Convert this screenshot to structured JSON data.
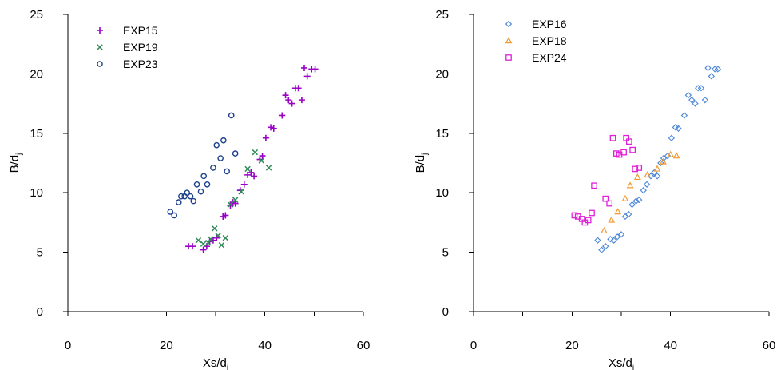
{
  "chart_data": [
    {
      "type": "scatter",
      "xlabel": "Xs/d",
      "xlabel_sub": "i",
      "ylabel": "B/d",
      "ylabel_sub": "j",
      "xlim": [
        0,
        60
      ],
      "ylim": [
        0,
        25
      ],
      "xticks": [
        0,
        20,
        40,
        60
      ],
      "yticks": [
        0,
        5,
        10,
        15,
        20,
        25
      ],
      "grid": false,
      "legend_position": "top-left",
      "series": [
        {
          "name": "EXP15",
          "marker": "plus",
          "color": "#9a00c8",
          "points": [
            [
              24.5,
              5.5
            ],
            [
              25.3,
              5.5
            ],
            [
              27.5,
              5.2
            ],
            [
              28.2,
              5.5
            ],
            [
              28.8,
              5.9
            ],
            [
              29.5,
              6.0
            ],
            [
              30.2,
              6.2
            ],
            [
              31.5,
              8.0
            ],
            [
              32.0,
              8.1
            ],
            [
              33.0,
              8.9
            ],
            [
              33.5,
              9.2
            ],
            [
              34.0,
              9.1
            ],
            [
              35.0,
              10.2
            ],
            [
              35.8,
              10.7
            ],
            [
              36.5,
              11.5
            ],
            [
              37.2,
              11.7
            ],
            [
              37.8,
              11.4
            ],
            [
              39.0,
              12.8
            ],
            [
              39.5,
              13.1
            ],
            [
              40.2,
              14.6
            ],
            [
              41.2,
              15.5
            ],
            [
              41.8,
              15.4
            ],
            [
              43.5,
              16.5
            ],
            [
              44.2,
              18.2
            ],
            [
              44.8,
              17.8
            ],
            [
              45.5,
              17.5
            ],
            [
              46.2,
              18.8
            ],
            [
              46.8,
              18.8
            ],
            [
              47.5,
              17.8
            ],
            [
              48.0,
              20.5
            ],
            [
              48.6,
              19.8
            ],
            [
              49.5,
              20.4
            ],
            [
              50.2,
              20.4
            ]
          ]
        },
        {
          "name": "EXP19",
          "marker": "x",
          "color": "#2e8b57",
          "points": [
            [
              26.5,
              6.0
            ],
            [
              27.5,
              5.7
            ],
            [
              28.5,
              5.8
            ],
            [
              29.0,
              6.1
            ],
            [
              29.8,
              7.0
            ],
            [
              30.5,
              6.4
            ],
            [
              31.2,
              5.6
            ],
            [
              32.0,
              6.2
            ],
            [
              33.0,
              9.0
            ],
            [
              34.0,
              9.4
            ],
            [
              35.2,
              10.1
            ],
            [
              36.5,
              12.0
            ],
            [
              38.0,
              13.4
            ],
            [
              39.3,
              12.7
            ],
            [
              40.8,
              12.1
            ]
          ]
        },
        {
          "name": "EXP23",
          "marker": "circle",
          "color": "#1a3f8c",
          "points": [
            [
              20.8,
              8.4
            ],
            [
              21.6,
              8.1
            ],
            [
              22.5,
              9.2
            ],
            [
              23.0,
              9.7
            ],
            [
              23.7,
              9.7
            ],
            [
              24.2,
              10.0
            ],
            [
              24.9,
              9.7
            ],
            [
              25.5,
              9.3
            ],
            [
              26.2,
              10.7
            ],
            [
              27.0,
              10.1
            ],
            [
              27.6,
              11.4
            ],
            [
              28.3,
              10.7
            ],
            [
              29.5,
              12.1
            ],
            [
              30.2,
              14.0
            ],
            [
              31.0,
              12.9
            ],
            [
              31.6,
              14.4
            ],
            [
              32.3,
              11.8
            ],
            [
              33.2,
              16.5
            ],
            [
              34.0,
              13.3
            ]
          ]
        }
      ]
    },
    {
      "type": "scatter",
      "xlabel": "Xs/d",
      "xlabel_sub": "i",
      "ylabel": "B/d",
      "ylabel_sub": "j",
      "xlim": [
        0,
        60
      ],
      "ylim": [
        0,
        25
      ],
      "xticks": [
        0,
        20,
        40,
        60
      ],
      "yticks": [
        0,
        5,
        10,
        15,
        20,
        25
      ],
      "grid": false,
      "legend_position": "top-left",
      "series": [
        {
          "name": "EXP16",
          "marker": "diamond",
          "color": "#4a86d8",
          "points": [
            [
              25.2,
              6.0
            ],
            [
              26.0,
              5.2
            ],
            [
              26.8,
              5.5
            ],
            [
              27.8,
              6.1
            ],
            [
              28.5,
              6.0
            ],
            [
              29.2,
              6.3
            ],
            [
              30.0,
              6.5
            ],
            [
              30.8,
              8.0
            ],
            [
              31.5,
              8.2
            ],
            [
              32.2,
              9.0
            ],
            [
              33.0,
              9.3
            ],
            [
              33.6,
              9.4
            ],
            [
              34.5,
              10.2
            ],
            [
              35.2,
              10.7
            ],
            [
              36.0,
              11.4
            ],
            [
              36.7,
              11.7
            ],
            [
              37.3,
              11.4
            ],
            [
              38.0,
              12.5
            ],
            [
              38.6,
              12.9
            ],
            [
              39.4,
              13.1
            ],
            [
              40.2,
              14.6
            ],
            [
              41.0,
              15.5
            ],
            [
              41.6,
              15.4
            ],
            [
              42.8,
              16.5
            ],
            [
              43.6,
              18.2
            ],
            [
              44.3,
              17.8
            ],
            [
              45.0,
              17.5
            ],
            [
              45.6,
              18.8
            ],
            [
              46.2,
              18.8
            ],
            [
              47.0,
              17.8
            ],
            [
              47.6,
              20.5
            ],
            [
              48.3,
              19.8
            ],
            [
              49.0,
              20.4
            ],
            [
              49.6,
              20.4
            ]
          ]
        },
        {
          "name": "EXP18",
          "marker": "triangle",
          "color": "#f39a32",
          "points": [
            [
              26.5,
              6.8
            ],
            [
              28.0,
              7.7
            ],
            [
              29.3,
              8.4
            ],
            [
              30.8,
              9.5
            ],
            [
              31.8,
              10.6
            ],
            [
              33.3,
              11.3
            ],
            [
              35.3,
              11.5
            ],
            [
              37.3,
              12.0
            ],
            [
              38.5,
              12.6
            ],
            [
              40.0,
              13.2
            ],
            [
              41.2,
              13.1
            ]
          ]
        },
        {
          "name": "EXP24",
          "marker": "square",
          "color": "#e020d8",
          "points": [
            [
              20.5,
              8.1
            ],
            [
              21.2,
              8.0
            ],
            [
              22.0,
              7.8
            ],
            [
              22.6,
              7.5
            ],
            [
              23.3,
              7.7
            ],
            [
              24.0,
              8.3
            ],
            [
              24.5,
              10.6
            ],
            [
              26.8,
              9.5
            ],
            [
              27.6,
              9.1
            ],
            [
              28.3,
              14.6
            ],
            [
              29.0,
              13.3
            ],
            [
              29.6,
              13.2
            ],
            [
              30.5,
              13.4
            ],
            [
              31.0,
              14.6
            ],
            [
              31.6,
              14.3
            ],
            [
              32.3,
              13.6
            ],
            [
              32.8,
              12.0
            ],
            [
              33.6,
              12.1
            ]
          ]
        }
      ]
    }
  ]
}
